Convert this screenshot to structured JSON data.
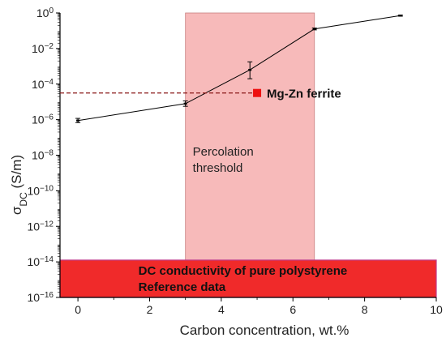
{
  "chart_data": {
    "type": "line",
    "title": "",
    "xlabel": "Carbon concentration, wt.%",
    "ylabel": {
      "main": "σ",
      "sub": "DC",
      "unit": " (S/m)"
    },
    "xlim": [
      -0.5,
      10
    ],
    "ylog": true,
    "ylim_exp": [
      -16,
      0
    ],
    "grid": false,
    "x_ticks": [
      0,
      2,
      4,
      6,
      8,
      10
    ],
    "y_tick_exps": [
      -16,
      -14,
      -12,
      -10,
      -8,
      -6,
      -4,
      -2,
      0
    ],
    "series": [
      {
        "x": [
          0,
          3,
          4.8,
          6.6,
          9
        ],
        "log10_y": [
          -6.05,
          -5.1,
          -3.2,
          -0.9,
          -0.15
        ],
        "err_low": [
          -6.17,
          -5.25,
          -3.7,
          -0.95,
          -0.18
        ],
        "err_high": [
          -5.93,
          -4.95,
          -2.75,
          -0.85,
          -0.12
        ],
        "color": "#000000"
      }
    ],
    "percolation_band": {
      "x_range": [
        3,
        6.6
      ],
      "color": "#f4a3a3",
      "label_lines": [
        "Percolation",
        "threshold"
      ]
    },
    "reference_line": {
      "log10_y": -4.5,
      "x_range": [
        -0.5,
        5
      ],
      "color": "#8b1a1a",
      "style": "dashed"
    },
    "ferrite_point": {
      "x": 5,
      "log10_y": -4.5,
      "label": "Mg-Zn ferrite",
      "color": "#ee1111"
    },
    "polystyrene_band": {
      "log10_y_range": [
        -16,
        -13.9
      ],
      "color": "#f02a2a",
      "label_lines": [
        "DC conductivity of pure polystyrene",
        "Reference data"
      ]
    }
  }
}
